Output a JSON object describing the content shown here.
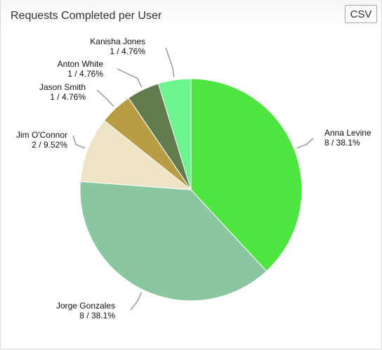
{
  "header": {
    "title": "Requests Completed per User",
    "csv_label": "CSV"
  },
  "chart_data": {
    "type": "pie",
    "title": "Requests Completed per User",
    "slices": [
      {
        "name": "Anna Levine",
        "value": 8,
        "label": "8 / 38.1%",
        "color": "#4ee540"
      },
      {
        "name": "Jorge Gonzales",
        "value": 8,
        "label": "8 / 38.1%",
        "color": "#8ac7a1"
      },
      {
        "name": "Jim O'Connor",
        "value": 2,
        "label": "2 / 9.52%",
        "color": "#efe3c6"
      },
      {
        "name": "Jason Smith",
        "value": 1,
        "label": "1 / 4.76%",
        "color": "#b89d44"
      },
      {
        "name": "Anton White",
        "value": 1,
        "label": "1 / 4.76%",
        "color": "#627c4e"
      },
      {
        "name": "Kanisha Jones",
        "value": 1,
        "label": "1 / 4.76%",
        "color": "#6cf58c"
      }
    ]
  }
}
